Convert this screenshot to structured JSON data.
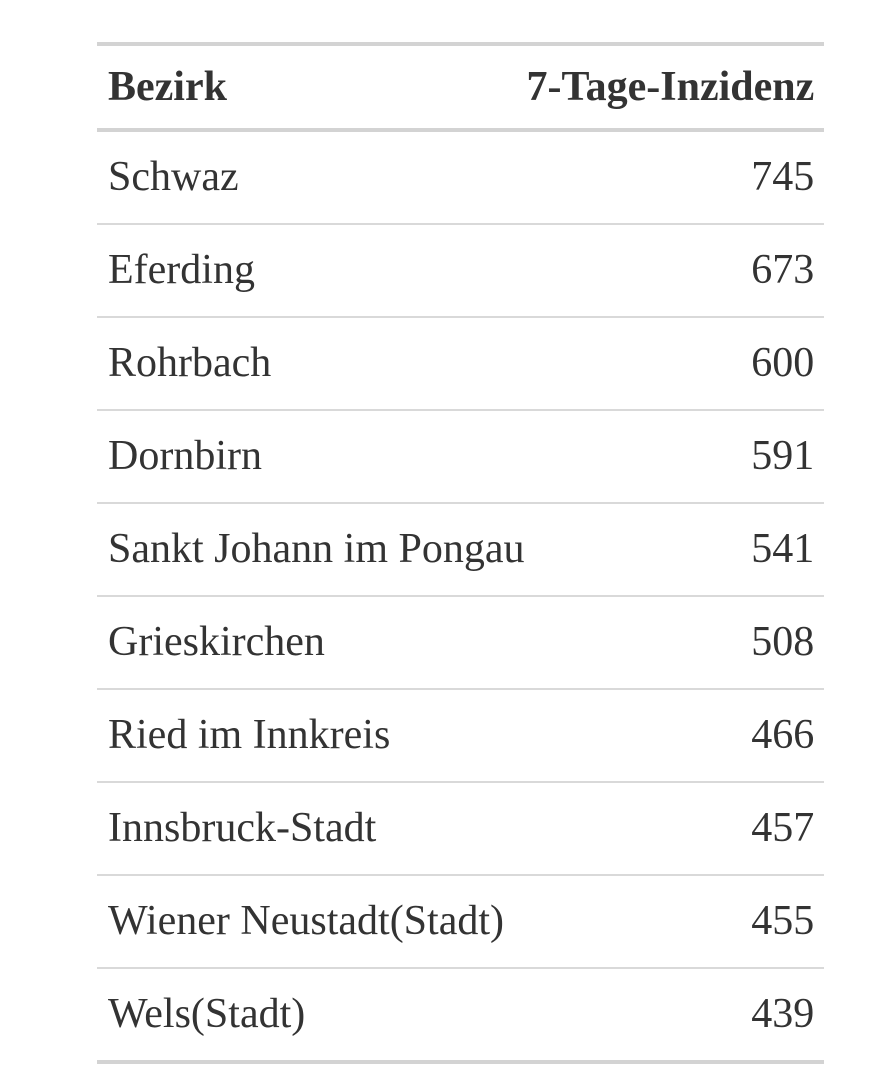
{
  "colors": {
    "background": "#ffffff",
    "text": "#333333",
    "rule_thick": "#d3d3d3",
    "rule_thin": "#d9d9d9"
  },
  "table": {
    "columns": [
      {
        "label": "Bezirk",
        "align": "left"
      },
      {
        "label": "7-Tage-Inzidenz",
        "align": "right"
      }
    ],
    "rows": [
      {
        "bezirk": "Schwaz",
        "inzidenz": "745"
      },
      {
        "bezirk": "Eferding",
        "inzidenz": "673"
      },
      {
        "bezirk": "Rohrbach",
        "inzidenz": "600"
      },
      {
        "bezirk": "Dornbirn",
        "inzidenz": "591"
      },
      {
        "bezirk": "Sankt Johann im Pongau",
        "inzidenz": "541"
      },
      {
        "bezirk": "Grieskirchen",
        "inzidenz": "508"
      },
      {
        "bezirk": "Ried im Innkreis",
        "inzidenz": "466"
      },
      {
        "bezirk": "Innsbruck-Stadt",
        "inzidenz": "457"
      },
      {
        "bezirk": "Wiener Neustadt(Stadt)",
        "inzidenz": "455"
      },
      {
        "bezirk": "Wels(Stadt)",
        "inzidenz": "439"
      }
    ]
  },
  "chart_data": {
    "type": "table",
    "title": "",
    "columns": [
      "Bezirk",
      "7-Tage-Inzidenz"
    ],
    "categories": [
      "Schwaz",
      "Eferding",
      "Rohrbach",
      "Dornbirn",
      "Sankt Johann im Pongau",
      "Grieskirchen",
      "Ried im Innkreis",
      "Innsbruck-Stadt",
      "Wiener Neustadt(Stadt)",
      "Wels(Stadt)"
    ],
    "values": [
      745,
      673,
      600,
      591,
      541,
      508,
      466,
      457,
      455,
      439
    ],
    "layout_hints": {
      "value_alignment": "right",
      "header_bold": true,
      "grid": "horizontal-rules-only"
    }
  }
}
